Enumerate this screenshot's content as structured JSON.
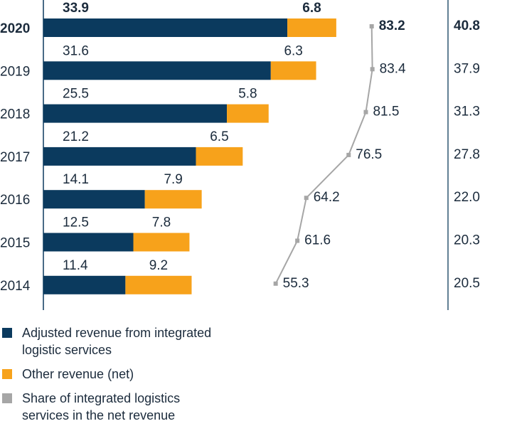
{
  "chart_data": {
    "type": "bar",
    "orientation": "horizontal",
    "stacked": true,
    "categories": [
      "2020",
      "2019",
      "2018",
      "2017",
      "2016",
      "2015",
      "2014"
    ],
    "series": [
      {
        "name": "Adjusted revenue from integrated logistic services",
        "color": "#0b3a5e",
        "values": [
          33.9,
          31.6,
          25.5,
          21.2,
          14.1,
          12.5,
          11.4
        ]
      },
      {
        "name": "Other revenue (net)",
        "color": "#f7a21b",
        "values": [
          6.8,
          6.3,
          5.8,
          6.5,
          7.9,
          7.8,
          9.2
        ]
      },
      {
        "name": "Share of integrated logistics services in the net revenue",
        "color": "#a6a6a6",
        "type": "line",
        "values": [
          83.2,
          83.4,
          81.5,
          76.5,
          64.2,
          61.6,
          55.3
        ]
      }
    ],
    "totals": [
      40.8,
      37.9,
      31.3,
      27.8,
      {
        "value": 22,
        "label": "22.0"
      },
      20.3,
      20.5
    ],
    "highlight": 0
  }
}
